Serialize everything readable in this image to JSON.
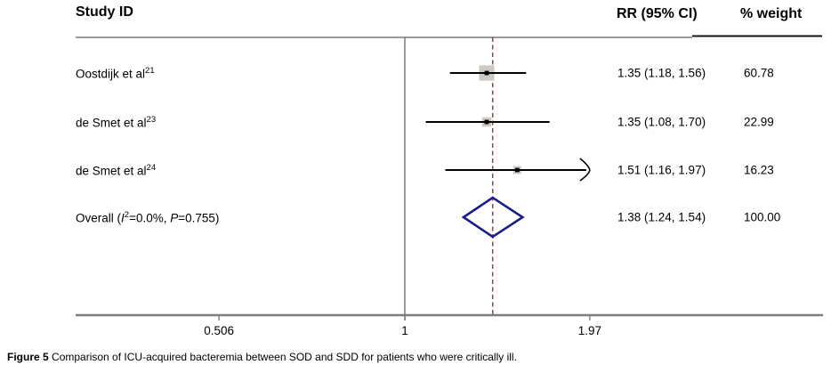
{
  "header": {
    "study_col": "Study ID",
    "rr_col": "RR (95% CI)",
    "weight_col": "% weight"
  },
  "chart_data": {
    "type": "forest",
    "x_scale": "log",
    "effect_measure": "RR",
    "axis": {
      "ticks": [
        {
          "value": 0.506,
          "label": "0.506"
        },
        {
          "value": 1,
          "label": "1"
        },
        {
          "value": 1.97,
          "label": "1.97"
        }
      ],
      "null_line": 1
    },
    "overall_line_value": 1.38,
    "studies": [
      {
        "label": "Oostdijk et al",
        "ref_sup": "21",
        "rr": 1.35,
        "ci_low": 1.18,
        "ci_high": 1.56,
        "rr_text": "1.35 (1.18, 1.56)",
        "weight": 60.78,
        "weight_text": "60.78",
        "ci_clipped_high": false
      },
      {
        "label": "de Smet et al",
        "ref_sup": "23",
        "rr": 1.35,
        "ci_low": 1.08,
        "ci_high": 1.7,
        "rr_text": "1.35 (1.08, 1.70)",
        "weight": 22.99,
        "weight_text": "22.99",
        "ci_clipped_high": false
      },
      {
        "label": "de Smet et al",
        "ref_sup": "24",
        "rr": 1.51,
        "ci_low": 1.16,
        "ci_high": 1.97,
        "rr_text": "1.51 (1.16, 1.97)",
        "weight": 16.23,
        "weight_text": "16.23",
        "ci_clipped_high": true
      }
    ],
    "overall": {
      "rr": 1.38,
      "ci_low": 1.24,
      "ci_high": 1.54,
      "rr_text": "1.38 (1.24, 1.54)",
      "weight": 100.0,
      "weight_text": "100.00",
      "label_parts": {
        "prefix": "Overall (",
        "i": "I",
        "i_sup": "2",
        "mid": "=0.0%, ",
        "p": "P",
        "suffix": "=0.755)"
      }
    }
  },
  "colors": {
    "overall_dashed_line": "#8b2a2a",
    "diamond": "#1c1c8a",
    "axis": "#7d7d7d",
    "header_rule_gray": "#9a9a9a",
    "header_rule_black": "#111111",
    "marker_fill": "#cdc9c3",
    "marker_dot": "#000000",
    "ci_line": "#000000",
    "text": "#000000"
  },
  "caption": {
    "bold": "Figure 5",
    "text": "Comparison of ICU-acquired bacteremia between SOD and SDD for patients who were critically ill."
  }
}
